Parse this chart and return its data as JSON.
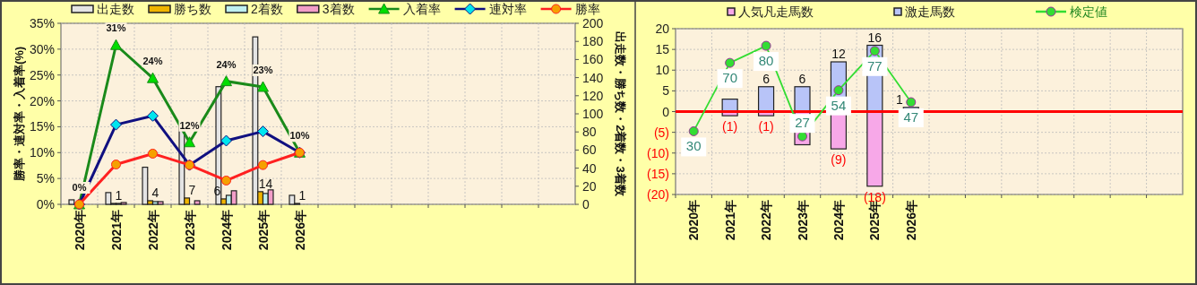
{
  "chart_data": [
    {
      "type": "bar",
      "categories": [
        "2020年",
        "2021年",
        "2022年",
        "2023年",
        "2024年",
        "2025年",
        "2026年",
        null,
        null,
        null,
        null,
        null,
        null,
        null
      ],
      "ylabel": "勝率・連対率・入着率(%)",
      "y2label": "出走数・勝ち数・2着数・3着数",
      "ylim": [
        0,
        35
      ],
      "yticks": [
        {
          "value": 0,
          "label": "0%"
        },
        {
          "value": 5,
          "label": "5%"
        },
        {
          "value": 10,
          "label": "10%"
        },
        {
          "value": 15,
          "label": "15%"
        },
        {
          "value": 20,
          "label": "20%"
        },
        {
          "value": 25,
          "label": "25%"
        },
        {
          "value": 30,
          "label": "30%"
        },
        {
          "value": 35,
          "label": "35%"
        }
      ],
      "y2lim": [
        0,
        200
      ],
      "y2ticks": [
        0,
        20,
        40,
        60,
        80,
        100,
        120,
        140,
        160,
        180,
        200
      ],
      "grid": true,
      "legend": "top",
      "series": [
        {
          "name": "出走数",
          "axis": "y2",
          "color": "#e4e4e4",
          "values": [
            5,
            13,
            41,
            92,
            130,
            185,
            10,
            null,
            null,
            null,
            null,
            null,
            null,
            null
          ]
        },
        {
          "name": "勝ち数",
          "axis": "y2",
          "color": "#f0b400",
          "values": [
            0,
            1,
            4,
            7,
            6,
            14,
            1,
            null,
            null,
            null,
            null,
            null,
            null,
            null
          ],
          "value_labels": [
            null,
            "1",
            "4",
            "7",
            "6",
            "14",
            "1",
            null,
            null,
            null,
            null,
            null,
            null,
            null
          ]
        },
        {
          "name": "2着数",
          "axis": "y2",
          "color": "#bff0f0",
          "values": [
            0,
            1,
            3,
            0,
            10,
            12,
            0,
            null,
            null,
            null,
            null,
            null,
            null,
            null
          ]
        },
        {
          "name": "3着数",
          "axis": "y2",
          "color": "#f29ec8",
          "values": [
            0,
            2,
            3,
            4,
            15,
            16,
            0,
            null,
            null,
            null,
            null,
            null,
            null,
            null
          ]
        },
        {
          "name": "入着率",
          "type": "line",
          "marker": "triangle",
          "color": "#1a8a1a",
          "values": [
            0,
            30.8,
            24.4,
            12.0,
            23.8,
            22.7,
            10,
            null,
            null,
            null,
            null,
            null,
            null,
            null
          ],
          "value_labels": [
            "0%",
            "31%",
            "24%",
            "12%",
            "24%",
            "23%",
            "10%",
            null,
            null,
            null,
            null,
            null,
            null,
            null
          ]
        },
        {
          "name": "連対率",
          "type": "line",
          "marker": "diamond",
          "color": "#101080",
          "values": [
            0,
            15.4,
            17.1,
            7.6,
            12.3,
            14.1,
            10,
            null,
            null,
            null,
            null,
            null,
            null,
            null
          ]
        },
        {
          "name": "勝率",
          "type": "line",
          "marker": "circle",
          "color": "#ff2020",
          "values": [
            0,
            7.7,
            9.8,
            7.6,
            4.6,
            7.6,
            10,
            null,
            null,
            null,
            null,
            null,
            null,
            null
          ]
        }
      ]
    },
    {
      "type": "bar",
      "stacked": true,
      "categories": [
        "2020年",
        "2021年",
        "2022年",
        "2023年",
        "2024年",
        "2025年",
        "2026年",
        null,
        null,
        null,
        null,
        null,
        null,
        null
      ],
      "ylim": [
        -20,
        20
      ],
      "yticks": [
        {
          "value": -20,
          "label": "(20)"
        },
        {
          "value": -15,
          "label": "(15)"
        },
        {
          "value": -10,
          "label": "(10)"
        },
        {
          "value": -5,
          "label": "(5)"
        },
        0,
        5,
        10,
        15,
        20
      ],
      "y2lim": [
        -7,
        90
      ],
      "grid": true,
      "legend": "top",
      "ref_lines": [
        {
          "axis": "y",
          "value": 0,
          "color": "#ff0000"
        }
      ],
      "series": [
        {
          "name": "人気凡走馬数",
          "color": "#f7a8e8",
          "values": [
            0,
            -1,
            -1,
            -8,
            -9,
            -18,
            0,
            null,
            null,
            null,
            null,
            null,
            null,
            null
          ],
          "value_labels": [
            null,
            "(1)",
            "(1)",
            null,
            "(9)",
            "(18)",
            null,
            null,
            null,
            null,
            null,
            null,
            null,
            null
          ]
        },
        {
          "name": "激走馬数",
          "color": "#b8c4f8",
          "values": [
            0,
            3,
            6,
            6,
            12,
            16,
            1,
            null,
            null,
            null,
            null,
            null,
            null,
            null
          ],
          "value_labels": [
            null,
            null,
            "6",
            "6",
            "12",
            "16",
            "1",
            null,
            null,
            null,
            null,
            null,
            null,
            null
          ]
        },
        {
          "name": "検定値",
          "type": "line",
          "axis": "y2",
          "marker": "circle",
          "color": "#33dd33",
          "values": [
            30,
            70,
            80,
            27,
            54,
            77,
            47,
            null,
            null,
            null,
            null,
            null,
            null,
            null
          ],
          "value_labels": [
            "30",
            "70",
            "80",
            "27",
            "54",
            "77",
            "47",
            null,
            null,
            null,
            null,
            null,
            null,
            null
          ]
        }
      ]
    }
  ]
}
